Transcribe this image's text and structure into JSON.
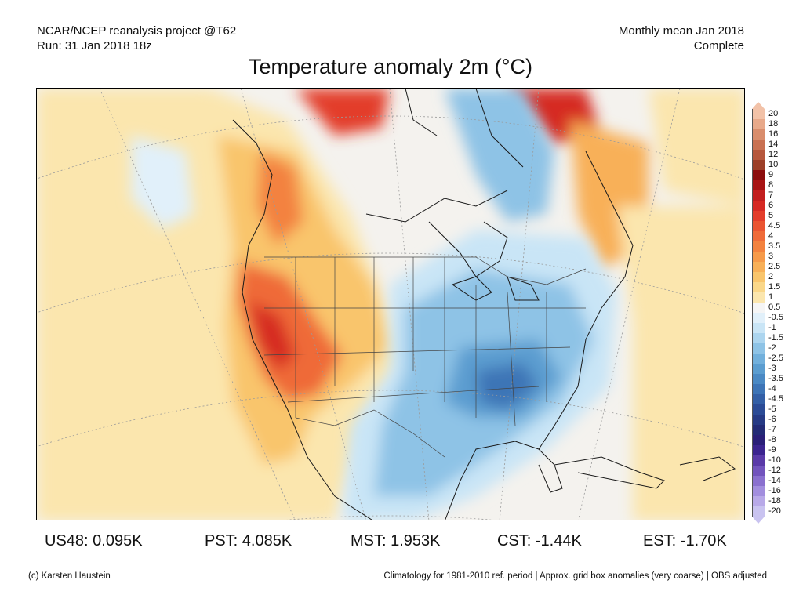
{
  "header": {
    "left_line1": "NCAR/NCEP reanalysis project @T62",
    "left_line2": "Run: 31 Jan 2018 18z",
    "right_line1": "Monthly mean Jan 2018",
    "right_line2": "Complete"
  },
  "title": "Temperature anomaly 2m (°C)",
  "colorbar": {
    "levels": [
      {
        "label": "20",
        "color": "#f2c2a8"
      },
      {
        "label": "18",
        "color": "#e8a98a"
      },
      {
        "label": "16",
        "color": "#d98d6c"
      },
      {
        "label": "14",
        "color": "#c97152"
      },
      {
        "label": "12",
        "color": "#b6573c"
      },
      {
        "label": "10",
        "color": "#9c3f28"
      },
      {
        "label": "9",
        "color": "#8c0d0d"
      },
      {
        "label": "8",
        "color": "#a81414"
      },
      {
        "label": "7",
        "color": "#c21f1f"
      },
      {
        "label": "6",
        "color": "#d62a24"
      },
      {
        "label": "5",
        "color": "#e33d2b"
      },
      {
        "label": "4.5",
        "color": "#ea5532"
      },
      {
        "label": "4",
        "color": "#ef6b39"
      },
      {
        "label": "3.5",
        "color": "#f3823f"
      },
      {
        "label": "3",
        "color": "#f69a4a"
      },
      {
        "label": "2.5",
        "color": "#f8b058"
      },
      {
        "label": "2",
        "color": "#f9c56c"
      },
      {
        "label": "1.5",
        "color": "#fad789"
      },
      {
        "label": "1",
        "color": "#fbe6ae"
      },
      {
        "label": "0.5",
        "color": "#f5f5f5"
      },
      {
        "label": "-0.5",
        "color": "#e1f0fa"
      },
      {
        "label": "-1",
        "color": "#c9e5f6"
      },
      {
        "label": "-1.5",
        "color": "#acd5ef"
      },
      {
        "label": "-2",
        "color": "#8ec3e6"
      },
      {
        "label": "-2.5",
        "color": "#72b0dc"
      },
      {
        "label": "-3",
        "color": "#5b9dd0"
      },
      {
        "label": "-3.5",
        "color": "#4a89c4"
      },
      {
        "label": "-4",
        "color": "#3d74b6"
      },
      {
        "label": "-4.5",
        "color": "#335fa6"
      },
      {
        "label": "-5",
        "color": "#2b4b96"
      },
      {
        "label": "-6",
        "color": "#263a85"
      },
      {
        "label": "-7",
        "color": "#232b76"
      },
      {
        "label": "-8",
        "color": "#2a1f78"
      },
      {
        "label": "-9",
        "color": "#3b248f"
      },
      {
        "label": "-10",
        "color": "#5a3aa8"
      },
      {
        "label": "-12",
        "color": "#7254bd"
      },
      {
        "label": "-14",
        "color": "#8a70cf"
      },
      {
        "label": "-16",
        "color": "#a28ede"
      },
      {
        "label": "-18",
        "color": "#b8a9e8"
      },
      {
        "label": "-20",
        "color": "#c9c3f0"
      }
    ]
  },
  "stats": [
    {
      "label": "US48: 0.095K"
    },
    {
      "label": "PST: 4.085K"
    },
    {
      "label": "MST: 1.953K"
    },
    {
      "label": "CST: -1.44K"
    },
    {
      "label": "EST: -1.70K"
    }
  ],
  "footer": {
    "left": "(c) Karsten Haustein",
    "right": "Climatology for 1981-2010 ref. period | Approx. grid box anomalies (very coarse) | OBS adjusted"
  }
}
